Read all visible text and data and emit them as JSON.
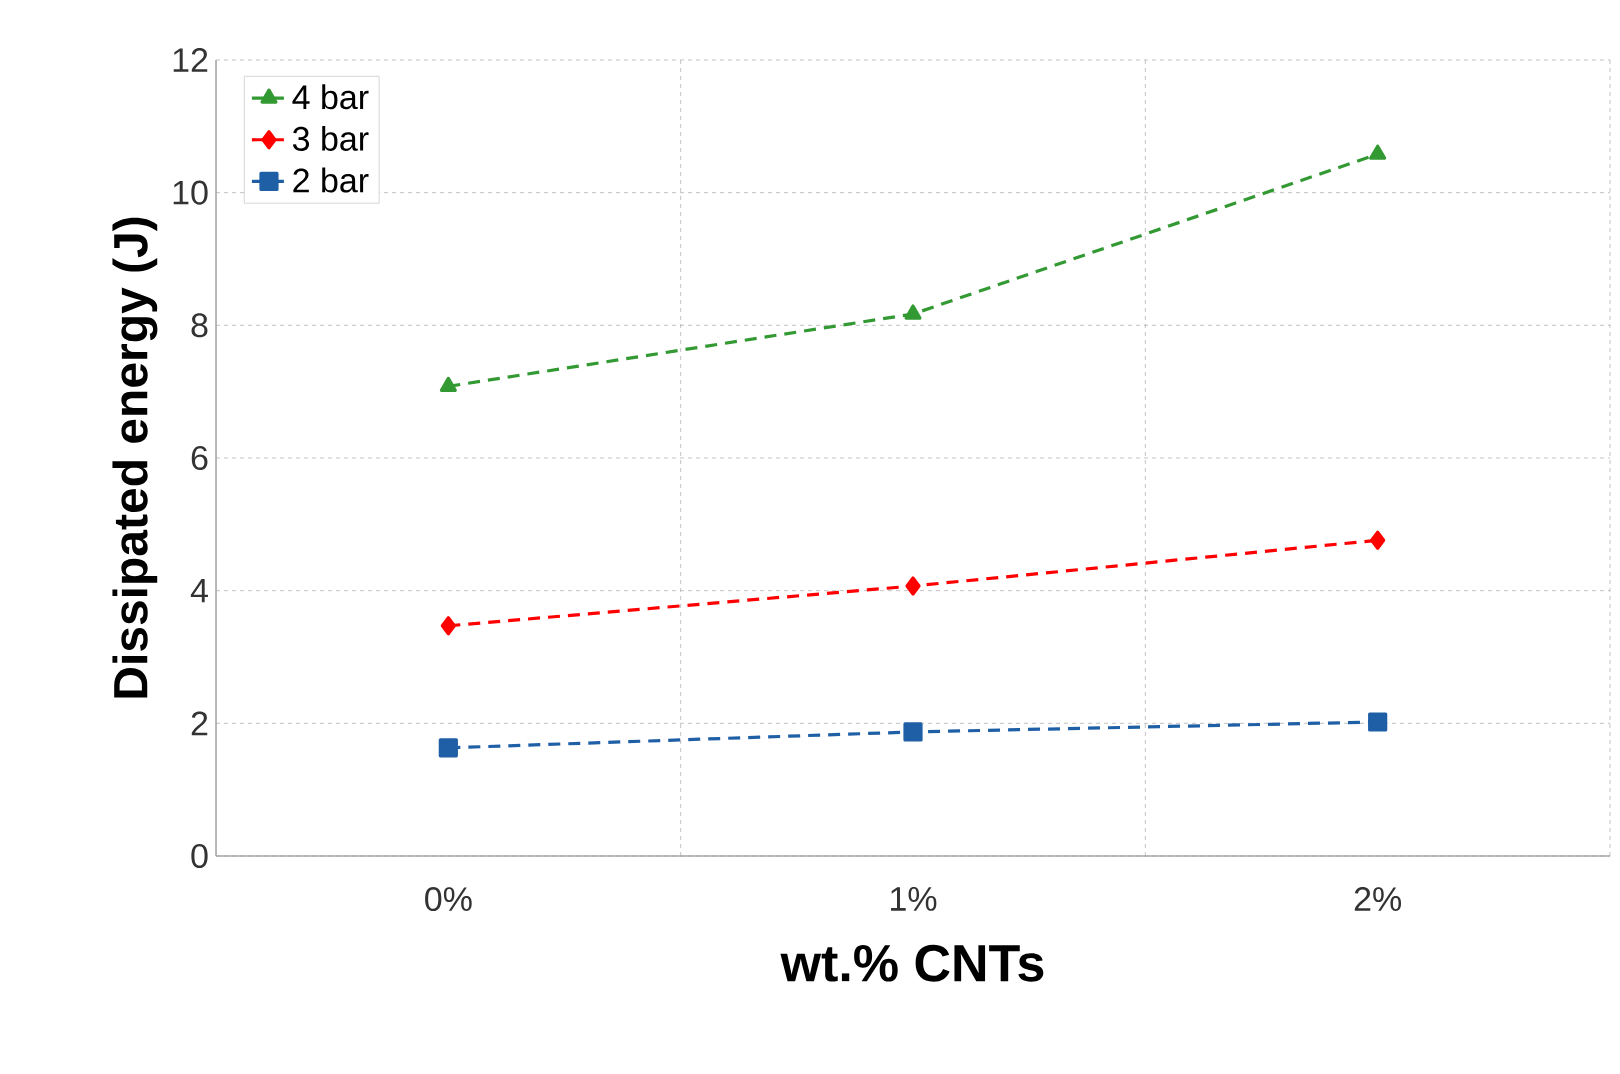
{
  "chart_data": {
    "type": "line",
    "xlabel": "wt.% CNTs",
    "ylabel": "Dissipated energy (J)",
    "categories": [
      "0%",
      "1%",
      "2%"
    ],
    "series": [
      {
        "name": "4 bar",
        "color": "#339933",
        "marker": "triangle",
        "values": [
          7.08,
          8.17,
          10.58
        ]
      },
      {
        "name": "3 bar",
        "color": "#ff0000",
        "marker": "diamond",
        "values": [
          3.47,
          4.07,
          4.76
        ]
      },
      {
        "name": "2 bar",
        "color": "#1f5fa6",
        "marker": "square",
        "values": [
          1.63,
          1.87,
          2.02
        ]
      }
    ],
    "ylim": [
      0,
      12
    ],
    "yticks": [
      0,
      2,
      4,
      6,
      8,
      10,
      12
    ],
    "grid": true,
    "legend": "top left",
    "line_style": "dashed"
  }
}
